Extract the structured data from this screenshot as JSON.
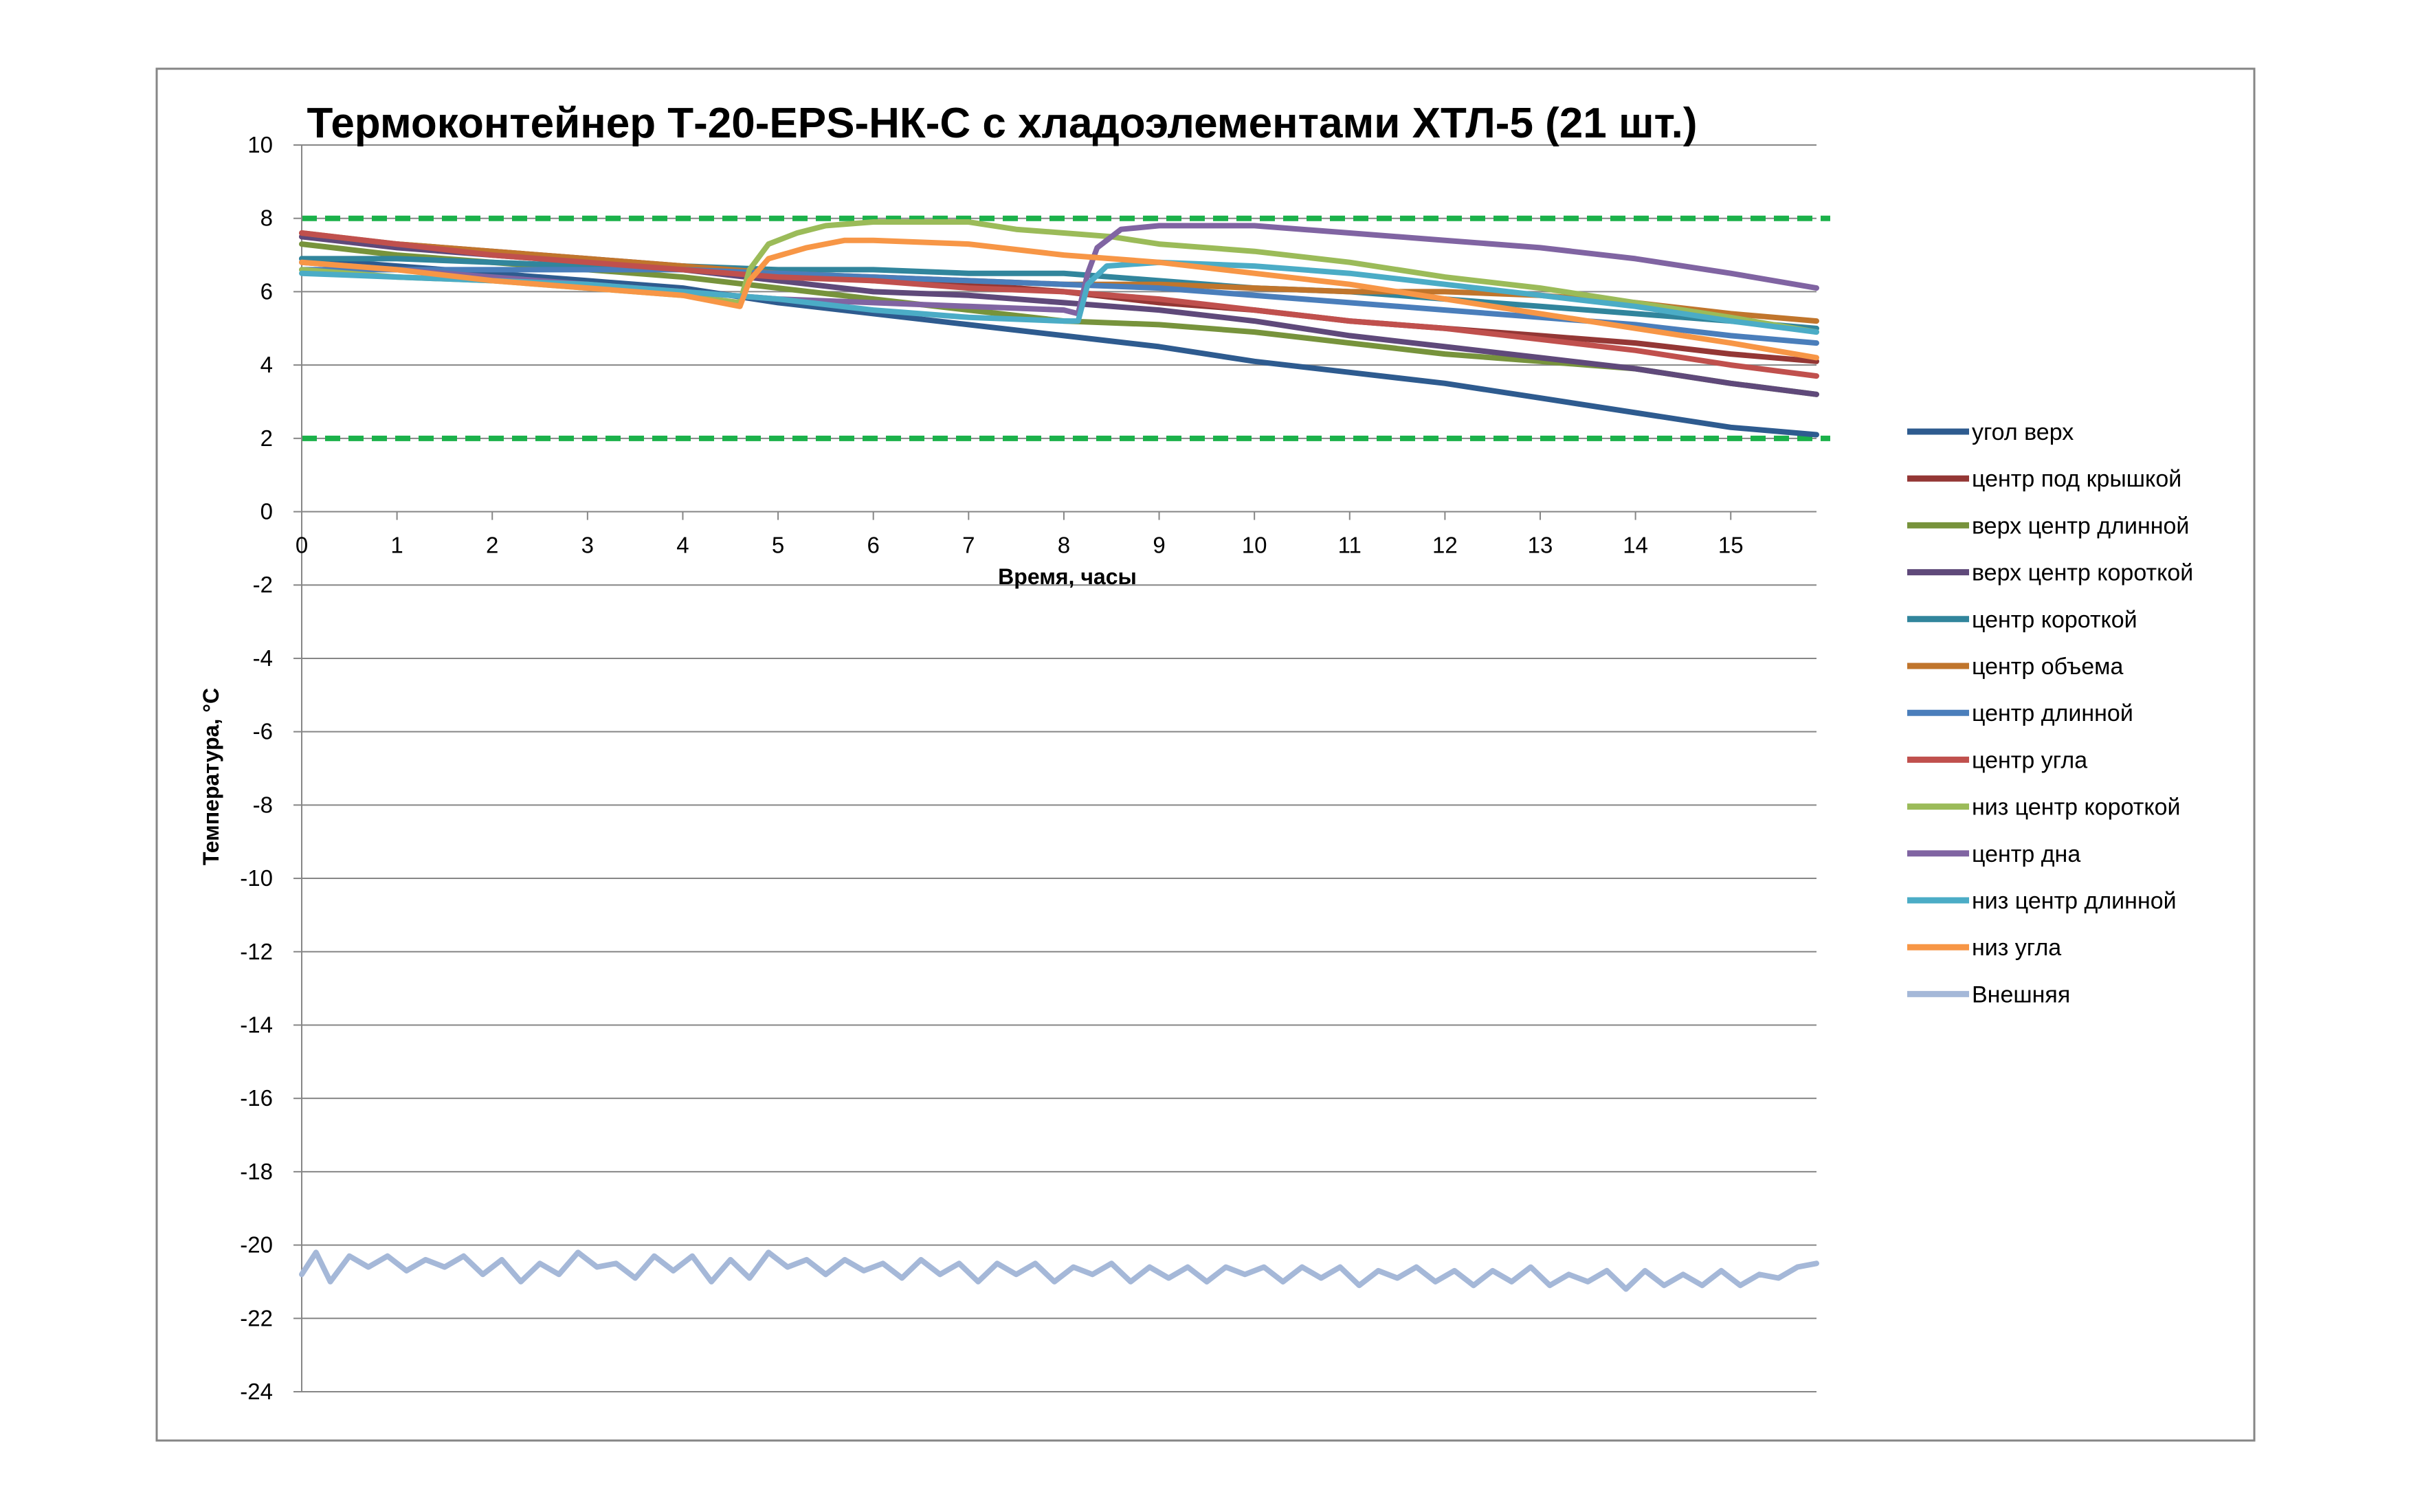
{
  "chart_data": {
    "type": "line",
    "title": "Термоконтейнер Т-20-EPS-НК-С с хладоэлементами ХТЛ-5 (21 шт.)",
    "xlabel": "Время, часы",
    "ylabel": "Температура, °С",
    "xlim": [
      0,
      15.9
    ],
    "ylim": [
      -24,
      10
    ],
    "x_ticks": [
      "0",
      "1",
      "2",
      "3",
      "4",
      "5",
      "6",
      "7",
      "8",
      "9",
      "10",
      "11",
      "12",
      "13",
      "14",
      "15"
    ],
    "y_ticks": [
      "10",
      "8",
      "6",
      "4",
      "2",
      "0",
      "-2",
      "-4",
      "-6",
      "-8",
      "-10",
      "-12",
      "-14",
      "-16",
      "-18",
      "-20",
      "-22",
      "-24"
    ],
    "grid": "horizontal",
    "legend_position": "right",
    "reference_lines": [
      {
        "y": 8,
        "color": "#1bb14a",
        "style": "dashed"
      },
      {
        "y": 2,
        "color": "#1bb14a",
        "style": "dashed"
      }
    ],
    "series": [
      {
        "name": "угол верх",
        "color": "#2e5b8f",
        "points": [
          [
            0,
            6.9
          ],
          [
            1,
            6.7
          ],
          [
            2,
            6.5
          ],
          [
            3,
            6.3
          ],
          [
            4,
            6.1
          ],
          [
            5,
            5.7
          ],
          [
            6,
            5.4
          ],
          [
            7,
            5.1
          ],
          [
            8,
            4.8
          ],
          [
            9,
            4.5
          ],
          [
            10,
            4.1
          ],
          [
            11,
            3.8
          ],
          [
            12,
            3.5
          ],
          [
            13,
            3.1
          ],
          [
            14,
            2.7
          ],
          [
            15,
            2.3
          ],
          [
            15.9,
            2.1
          ]
        ]
      },
      {
        "name": "центр под крышкой",
        "color": "#943735",
        "points": [
          [
            0,
            7.5
          ],
          [
            1,
            7.3
          ],
          [
            2,
            7.1
          ],
          [
            3,
            6.9
          ],
          [
            4,
            6.7
          ],
          [
            5,
            6.5
          ],
          [
            6,
            6.3
          ],
          [
            7,
            6.2
          ],
          [
            8,
            6.0
          ],
          [
            9,
            5.7
          ],
          [
            10,
            5.5
          ],
          [
            11,
            5.2
          ],
          [
            12,
            5.0
          ],
          [
            13,
            4.8
          ],
          [
            14,
            4.6
          ],
          [
            15,
            4.3
          ],
          [
            15.9,
            4.1
          ]
        ]
      },
      {
        "name": "верх центр длинной",
        "color": "#77933c",
        "points": [
          [
            0,
            7.3
          ],
          [
            1,
            7.0
          ],
          [
            2,
            6.8
          ],
          [
            3,
            6.6
          ],
          [
            4,
            6.4
          ],
          [
            5,
            6.1
          ],
          [
            6,
            5.8
          ],
          [
            7,
            5.5
          ],
          [
            8,
            5.2
          ],
          [
            9,
            5.1
          ],
          [
            10,
            4.9
          ],
          [
            11,
            4.6
          ],
          [
            12,
            4.3
          ],
          [
            13,
            4.1
          ],
          [
            14,
            3.9
          ],
          [
            15,
            3.5
          ],
          [
            15.9,
            3.2
          ]
        ]
      },
      {
        "name": "верх центр короткой",
        "color": "#5f497a",
        "points": [
          [
            0,
            7.5
          ],
          [
            1,
            7.2
          ],
          [
            2,
            7.0
          ],
          [
            3,
            6.8
          ],
          [
            4,
            6.6
          ],
          [
            5,
            6.3
          ],
          [
            6,
            6.0
          ],
          [
            7,
            5.9
          ],
          [
            8,
            5.7
          ],
          [
            9,
            5.5
          ],
          [
            10,
            5.2
          ],
          [
            11,
            4.8
          ],
          [
            12,
            4.5
          ],
          [
            13,
            4.2
          ],
          [
            14,
            3.9
          ],
          [
            15,
            3.5
          ],
          [
            15.9,
            3.2
          ]
        ]
      },
      {
        "name": "центр короткой",
        "color": "#31859c",
        "points": [
          [
            0,
            6.9
          ],
          [
            1,
            6.9
          ],
          [
            2,
            6.8
          ],
          [
            3,
            6.7
          ],
          [
            4,
            6.7
          ],
          [
            5,
            6.6
          ],
          [
            6,
            6.6
          ],
          [
            7,
            6.5
          ],
          [
            8,
            6.5
          ],
          [
            9,
            6.3
          ],
          [
            10,
            6.1
          ],
          [
            11,
            6.0
          ],
          [
            12,
            5.8
          ],
          [
            13,
            5.6
          ],
          [
            14,
            5.4
          ],
          [
            15,
            5.2
          ],
          [
            15.9,
            5.0
          ]
        ]
      },
      {
        "name": "центр объема",
        "color": "#c0752c",
        "points": [
          [
            0,
            7.6
          ],
          [
            1,
            7.3
          ],
          [
            2,
            7.1
          ],
          [
            3,
            6.9
          ],
          [
            4,
            6.7
          ],
          [
            5,
            6.5
          ],
          [
            6,
            6.4
          ],
          [
            7,
            6.3
          ],
          [
            8,
            6.2
          ],
          [
            9,
            6.2
          ],
          [
            10,
            6.1
          ],
          [
            11,
            6.0
          ],
          [
            12,
            6.0
          ],
          [
            13,
            5.9
          ],
          [
            14,
            5.7
          ],
          [
            15,
            5.4
          ],
          [
            15.9,
            5.2
          ]
        ]
      },
      {
        "name": "центр длинной",
        "color": "#4a7ebb",
        "points": [
          [
            0,
            6.6
          ],
          [
            1,
            6.6
          ],
          [
            2,
            6.6
          ],
          [
            3,
            6.6
          ],
          [
            4,
            6.6
          ],
          [
            5,
            6.5
          ],
          [
            6,
            6.4
          ],
          [
            7,
            6.3
          ],
          [
            8,
            6.2
          ],
          [
            9,
            6.1
          ],
          [
            10,
            5.9
          ],
          [
            11,
            5.7
          ],
          [
            12,
            5.5
          ],
          [
            13,
            5.3
          ],
          [
            14,
            5.1
          ],
          [
            15,
            4.8
          ],
          [
            15.9,
            4.6
          ]
        ]
      },
      {
        "name": "центр угла",
        "color": "#c0504d",
        "points": [
          [
            0,
            7.6
          ],
          [
            1,
            7.3
          ],
          [
            2,
            7.0
          ],
          [
            3,
            6.8
          ],
          [
            4,
            6.6
          ],
          [
            5,
            6.4
          ],
          [
            6,
            6.3
          ],
          [
            7,
            6.1
          ],
          [
            8,
            6.0
          ],
          [
            9,
            5.8
          ],
          [
            10,
            5.5
          ],
          [
            11,
            5.2
          ],
          [
            12,
            5.0
          ],
          [
            13,
            4.7
          ],
          [
            14,
            4.4
          ],
          [
            15,
            4.0
          ],
          [
            15.9,
            3.7
          ]
        ]
      },
      {
        "name": "низ центр короткой",
        "color": "#9bbb59",
        "points": [
          [
            0,
            6.6
          ],
          [
            0.5,
            6.5
          ],
          [
            1,
            6.4
          ],
          [
            2,
            6.3
          ],
          [
            3,
            6.1
          ],
          [
            4,
            5.9
          ],
          [
            4.6,
            5.7
          ],
          [
            4.7,
            6.6
          ],
          [
            4.9,
            7.3
          ],
          [
            5.2,
            7.6
          ],
          [
            5.5,
            7.8
          ],
          [
            6,
            7.9
          ],
          [
            7,
            7.9
          ],
          [
            7.5,
            7.7
          ],
          [
            8,
            7.6
          ],
          [
            8.5,
            7.5
          ],
          [
            9,
            7.3
          ],
          [
            10,
            7.1
          ],
          [
            11,
            6.8
          ],
          [
            12,
            6.4
          ],
          [
            13,
            6.1
          ],
          [
            14,
            5.7
          ],
          [
            15,
            5.3
          ],
          [
            15.9,
            4.9
          ]
        ]
      },
      {
        "name": "центр дна",
        "color": "#8064a2",
        "points": [
          [
            0,
            6.8
          ],
          [
            1,
            6.6
          ],
          [
            2,
            6.4
          ],
          [
            3,
            6.2
          ],
          [
            4,
            6.0
          ],
          [
            5,
            5.8
          ],
          [
            6,
            5.7
          ],
          [
            7,
            5.6
          ],
          [
            8,
            5.5
          ],
          [
            8.15,
            5.4
          ],
          [
            8.25,
            6.5
          ],
          [
            8.35,
            7.2
          ],
          [
            8.6,
            7.7
          ],
          [
            9,
            7.8
          ],
          [
            10,
            7.8
          ],
          [
            11,
            7.6
          ],
          [
            12,
            7.4
          ],
          [
            13,
            7.2
          ],
          [
            14,
            6.9
          ],
          [
            15,
            6.5
          ],
          [
            15.9,
            6.1
          ]
        ]
      },
      {
        "name": "низ центр  длинной",
        "color": "#4bacc6",
        "points": [
          [
            0,
            6.5
          ],
          [
            1,
            6.4
          ],
          [
            2,
            6.3
          ],
          [
            3,
            6.2
          ],
          [
            4,
            6.0
          ],
          [
            5,
            5.8
          ],
          [
            6,
            5.5
          ],
          [
            7,
            5.3
          ],
          [
            8,
            5.2
          ],
          [
            8.15,
            5.2
          ],
          [
            8.25,
            6.2
          ],
          [
            8.45,
            6.7
          ],
          [
            9,
            6.8
          ],
          [
            10,
            6.7
          ],
          [
            11,
            6.5
          ],
          [
            12,
            6.2
          ],
          [
            13,
            5.9
          ],
          [
            14,
            5.6
          ],
          [
            15,
            5.2
          ],
          [
            15.9,
            4.9
          ]
        ]
      },
      {
        "name": "низ угла",
        "color": "#f79646",
        "points": [
          [
            0,
            6.8
          ],
          [
            1,
            6.6
          ],
          [
            2,
            6.3
          ],
          [
            3,
            6.1
          ],
          [
            4,
            5.9
          ],
          [
            4.6,
            5.6
          ],
          [
            4.7,
            6.3
          ],
          [
            4.9,
            6.9
          ],
          [
            5.3,
            7.2
          ],
          [
            5.7,
            7.4
          ],
          [
            6,
            7.4
          ],
          [
            7,
            7.3
          ],
          [
            8,
            7.0
          ],
          [
            9,
            6.8
          ],
          [
            10,
            6.5
          ],
          [
            11,
            6.2
          ],
          [
            12,
            5.8
          ],
          [
            13,
            5.4
          ],
          [
            14,
            5.0
          ],
          [
            15,
            4.6
          ],
          [
            15.9,
            4.2
          ]
        ]
      },
      {
        "name": "Внешняя",
        "color": "#a5b8d8",
        "points": [
          [
            0,
            -20.8
          ],
          [
            0.15,
            -20.2
          ],
          [
            0.3,
            -21.0
          ],
          [
            0.5,
            -20.3
          ],
          [
            0.7,
            -20.6
          ],
          [
            0.9,
            -20.3
          ],
          [
            1.1,
            -20.7
          ],
          [
            1.3,
            -20.4
          ],
          [
            1.5,
            -20.6
          ],
          [
            1.7,
            -20.3
          ],
          [
            1.9,
            -20.8
          ],
          [
            2.1,
            -20.4
          ],
          [
            2.3,
            -21.0
          ],
          [
            2.5,
            -20.5
          ],
          [
            2.7,
            -20.8
          ],
          [
            2.9,
            -20.2
          ],
          [
            3.1,
            -20.6
          ],
          [
            3.3,
            -20.5
          ],
          [
            3.5,
            -20.9
          ],
          [
            3.7,
            -20.3
          ],
          [
            3.9,
            -20.7
          ],
          [
            4.1,
            -20.3
          ],
          [
            4.3,
            -21.0
          ],
          [
            4.5,
            -20.4
          ],
          [
            4.7,
            -20.9
          ],
          [
            4.9,
            -20.2
          ],
          [
            5.1,
            -20.6
          ],
          [
            5.3,
            -20.4
          ],
          [
            5.5,
            -20.8
          ],
          [
            5.7,
            -20.4
          ],
          [
            5.9,
            -20.7
          ],
          [
            6.1,
            -20.5
          ],
          [
            6.3,
            -20.9
          ],
          [
            6.5,
            -20.4
          ],
          [
            6.7,
            -20.8
          ],
          [
            6.9,
            -20.5
          ],
          [
            7.1,
            -21.0
          ],
          [
            7.3,
            -20.5
          ],
          [
            7.5,
            -20.8
          ],
          [
            7.7,
            -20.5
          ],
          [
            7.9,
            -21.0
          ],
          [
            8.1,
            -20.6
          ],
          [
            8.3,
            -20.8
          ],
          [
            8.5,
            -20.5
          ],
          [
            8.7,
            -21.0
          ],
          [
            8.9,
            -20.6
          ],
          [
            9.1,
            -20.9
          ],
          [
            9.3,
            -20.6
          ],
          [
            9.5,
            -21.0
          ],
          [
            9.7,
            -20.6
          ],
          [
            9.9,
            -20.8
          ],
          [
            10.1,
            -20.6
          ],
          [
            10.3,
            -21.0
          ],
          [
            10.5,
            -20.6
          ],
          [
            10.7,
            -20.9
          ],
          [
            10.9,
            -20.6
          ],
          [
            11.1,
            -21.1
          ],
          [
            11.3,
            -20.7
          ],
          [
            11.5,
            -20.9
          ],
          [
            11.7,
            -20.6
          ],
          [
            11.9,
            -21.0
          ],
          [
            12.1,
            -20.7
          ],
          [
            12.3,
            -21.1
          ],
          [
            12.5,
            -20.7
          ],
          [
            12.7,
            -21.0
          ],
          [
            12.9,
            -20.6
          ],
          [
            13.1,
            -21.1
          ],
          [
            13.3,
            -20.8
          ],
          [
            13.5,
            -21.0
          ],
          [
            13.7,
            -20.7
          ],
          [
            13.9,
            -21.2
          ],
          [
            14.1,
            -20.7
          ],
          [
            14.3,
            -21.1
          ],
          [
            14.5,
            -20.8
          ],
          [
            14.7,
            -21.1
          ],
          [
            14.9,
            -20.7
          ],
          [
            15.1,
            -21.1
          ],
          [
            15.3,
            -20.8
          ],
          [
            15.5,
            -20.9
          ],
          [
            15.7,
            -20.6
          ],
          [
            15.9,
            -20.5
          ]
        ]
      }
    ]
  }
}
